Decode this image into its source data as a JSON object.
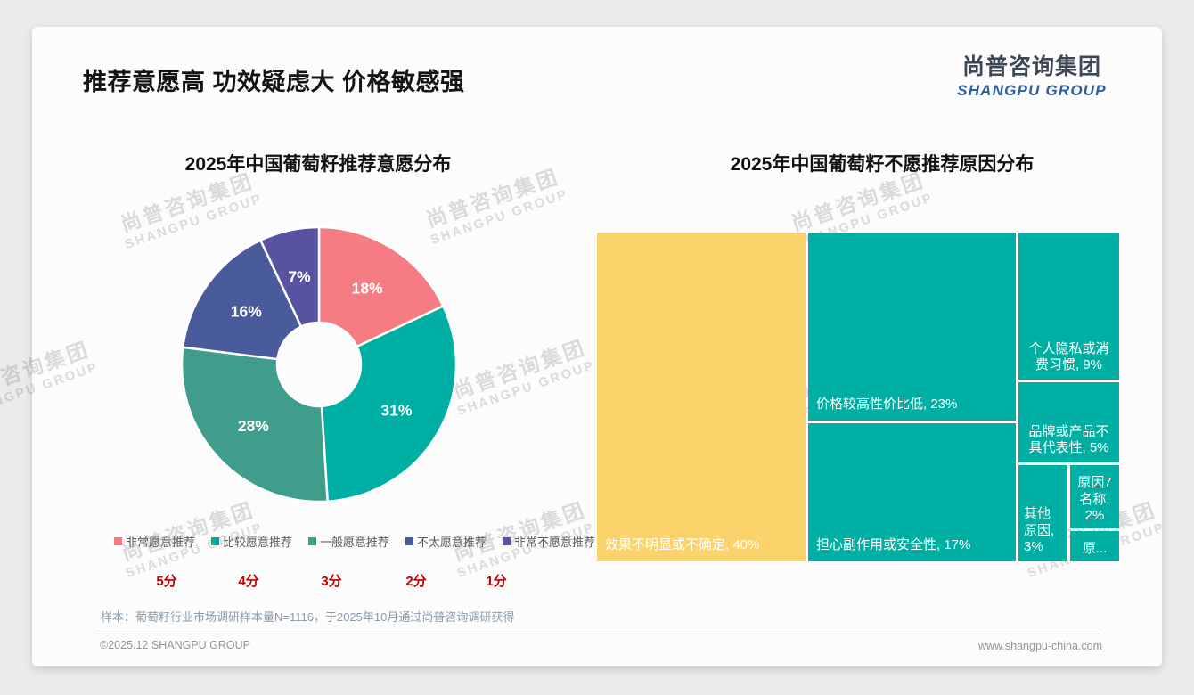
{
  "header": {
    "title": "推荐意愿高 功效疑虑大 价格敏感强",
    "logo_cn": "尚普咨询集团",
    "logo_en": "SHANGPU GROUP"
  },
  "watermark": {
    "line1": "尚普咨询集团",
    "line2": "SHANGPU GROUP"
  },
  "footer": {
    "sample_note": "样本：葡萄籽行业市场调研样本量N=1116，于2025年10月通过尚普咨询调研获得",
    "copyright": "©2025.12 SHANGPU GROUP",
    "website": "www.shangpu-china.com"
  },
  "chart_data": [
    {
      "type": "pie",
      "subtype": "donut",
      "title": "2025年中国葡萄籽推荐意愿分布",
      "categories": [
        "非常愿意推荐",
        "比较愿意推荐",
        "一般愿意推荐",
        "不太愿意推荐",
        "非常不愿意推荐"
      ],
      "values": [
        18,
        31,
        28,
        16,
        7
      ],
      "value_labels": [
        "18%",
        "31%",
        "28%",
        "16%",
        "7%"
      ],
      "score_scale": [
        "5分",
        "4分",
        "3分",
        "2分",
        "1分"
      ],
      "colors": [
        "#F57C82",
        "#00AFA4",
        "#3F9E8B",
        "#4A5B9C",
        "#5853A0"
      ],
      "legend_position": "bottom",
      "start_angle_deg": 0,
      "direction": "clockwise"
    },
    {
      "type": "treemap",
      "title": "2025年中国葡萄籽不愿推荐原因分布",
      "categories": [
        "效果不明显或不确定",
        "价格较高性价比低",
        "担心副作用或安全性",
        "个人隐私或消费习惯",
        "品牌或产品不具代表性",
        "其他原因",
        "原因7名称",
        "原..."
      ],
      "values": [
        40,
        23,
        17,
        9,
        5,
        3,
        2,
        1
      ],
      "display_labels": [
        "效果不明显或不确定, 40%",
        "价格较高性价比低, 23%",
        "担心副作用或安全性, 17%",
        "个人隐私或消费习惯, 9%",
        "品牌或产品不具代表性, 5%",
        "其他原因, 3%",
        "原因7名称, 2%",
        "原..."
      ],
      "cell_colors": [
        "#FBD36B",
        "#00AFA4",
        "#00AFA4",
        "#00AFA4",
        "#00AFA4",
        "#00AFA4",
        "#00AFA4",
        "#00AFA4"
      ]
    }
  ]
}
